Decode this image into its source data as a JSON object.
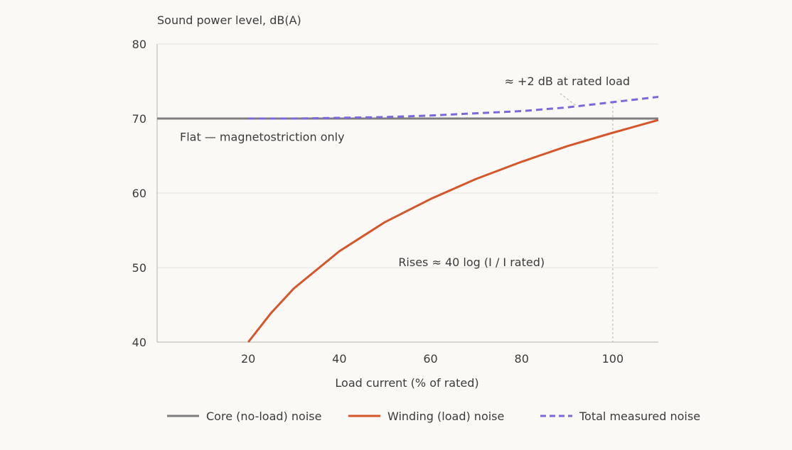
{
  "chart_data": {
    "type": "line",
    "ylabel": "Sound power level, dB(A)",
    "xlabel": "Load current (% of rated)",
    "xlim": [
      0,
      110
    ],
    "ylim": [
      40,
      80
    ],
    "x_ticks": [
      20,
      40,
      60,
      80,
      100
    ],
    "y_ticks": [
      40,
      50,
      60,
      70,
      80
    ],
    "grid": "horizontal",
    "legend_position": "bottom",
    "series": [
      {
        "name": "Core (no-load) noise",
        "color": "#7f7f7f",
        "style": "solid",
        "x": [
          0,
          110
        ],
        "y": [
          70,
          70
        ]
      },
      {
        "name": "Winding (load) noise",
        "color": "#d4562a",
        "style": "solid",
        "x": [
          20,
          25,
          30,
          40,
          50,
          60,
          70,
          80,
          90,
          100,
          110
        ],
        "y": [
          40,
          43.9,
          47.2,
          52.2,
          56.1,
          59.2,
          61.9,
          64.2,
          66.3,
          68.1,
          69.8
        ]
      },
      {
        "name": "Total measured noise",
        "color": "#7b68dd",
        "style": "dashed",
        "x": [
          20,
          30,
          40,
          50,
          60,
          70,
          80,
          90,
          100,
          110
        ],
        "y": [
          70.0,
          70.0,
          70.1,
          70.2,
          70.4,
          70.7,
          71.0,
          71.5,
          72.2,
          72.9
        ]
      }
    ],
    "annotations": [
      {
        "text": "≈ +2 dB at rated load",
        "x": 90,
        "y": 74.5,
        "anchor": "middle",
        "pointer_to": [
          92,
          71.7
        ]
      },
      {
        "text": "Flat — magnetostriction only",
        "x": 5,
        "y": 67,
        "anchor": "start"
      },
      {
        "text": "Rises ≈ 40 log (I / I rated)",
        "x": 69,
        "y": 50.2,
        "anchor": "middle"
      }
    ],
    "reference_line": {
      "x": 100
    }
  }
}
